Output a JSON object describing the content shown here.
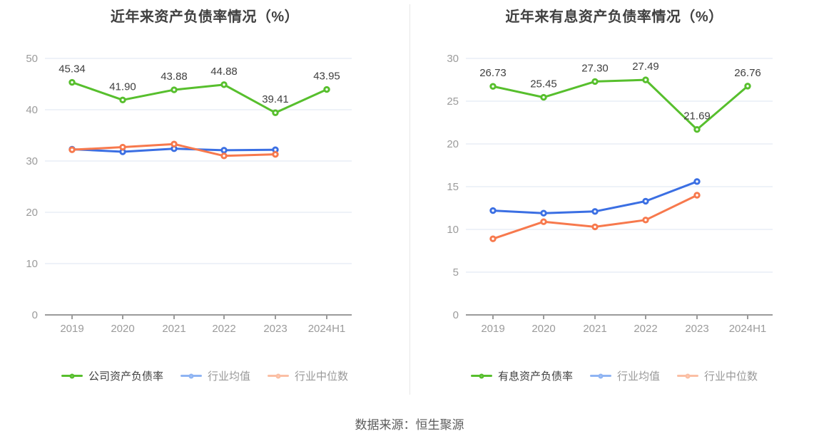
{
  "page": {
    "source_note": "数据来源：恒生聚源"
  },
  "style": {
    "grid_line_color": "#e9edf6",
    "axis_line_color": "#9b9b9b",
    "tick_label_color": "#9b9b9b",
    "point_label_color": "#404040",
    "title_color": "#404040"
  },
  "chart_data": [
    {
      "type": "line",
      "title": "近年来资产负债率情况（%）",
      "categories": [
        "2019",
        "2020",
        "2021",
        "2022",
        "2023",
        "2024H1"
      ],
      "xlabel": "",
      "ylabel": "",
      "ylim": [
        0,
        50
      ],
      "ytick_step": 10,
      "grid": true,
      "legend_position": "bottom",
      "series": [
        {
          "name": "公司资产负债率",
          "values": [
            45.34,
            41.9,
            43.88,
            44.88,
            39.41,
            43.95
          ],
          "point_labels": [
            "45.34",
            "41.90",
            "43.88",
            "44.88",
            "39.41",
            "43.95"
          ],
          "show_point_labels": true,
          "color": "#57bf2d",
          "legend_icon_color": "#57bf2d",
          "legend_text_color": "#404040"
        },
        {
          "name": "行业均值",
          "values": [
            32.3,
            31.8,
            32.4,
            32.1,
            32.2
          ],
          "show_point_labels": false,
          "color": "#3b6fe3",
          "legend_icon_color": "#8fb4f3",
          "legend_text_color": "#999999"
        },
        {
          "name": "行业中位数",
          "values": [
            32.2,
            32.7,
            33.3,
            31.0,
            31.3
          ],
          "show_point_labels": false,
          "color": "#f7794d",
          "legend_icon_color": "#fbbfa4",
          "legend_text_color": "#999999"
        }
      ]
    },
    {
      "type": "line",
      "title": "近年来有息资产负债率情况（%）",
      "categories": [
        "2019",
        "2020",
        "2021",
        "2022",
        "2023",
        "2024H1"
      ],
      "xlabel": "",
      "ylabel": "",
      "ylim": [
        0,
        30
      ],
      "ytick_step": 5,
      "grid": true,
      "legend_position": "bottom",
      "series": [
        {
          "name": "有息资产负债率",
          "values": [
            26.73,
            25.45,
            27.3,
            27.49,
            21.69,
            26.76
          ],
          "point_labels": [
            "26.73",
            "25.45",
            "27.30",
            "27.49",
            "21.69",
            "26.76"
          ],
          "show_point_labels": true,
          "color": "#57bf2d",
          "legend_icon_color": "#57bf2d",
          "legend_text_color": "#404040"
        },
        {
          "name": "行业均值",
          "values": [
            12.2,
            11.9,
            12.1,
            13.3,
            15.6
          ],
          "show_point_labels": false,
          "color": "#3b6fe3",
          "legend_icon_color": "#8fb4f3",
          "legend_text_color": "#999999"
        },
        {
          "name": "行业中位数",
          "values": [
            8.9,
            10.9,
            10.3,
            11.1,
            14.0
          ],
          "show_point_labels": false,
          "color": "#f7794d",
          "legend_icon_color": "#fbbfa4",
          "legend_text_color": "#999999"
        }
      ]
    }
  ]
}
